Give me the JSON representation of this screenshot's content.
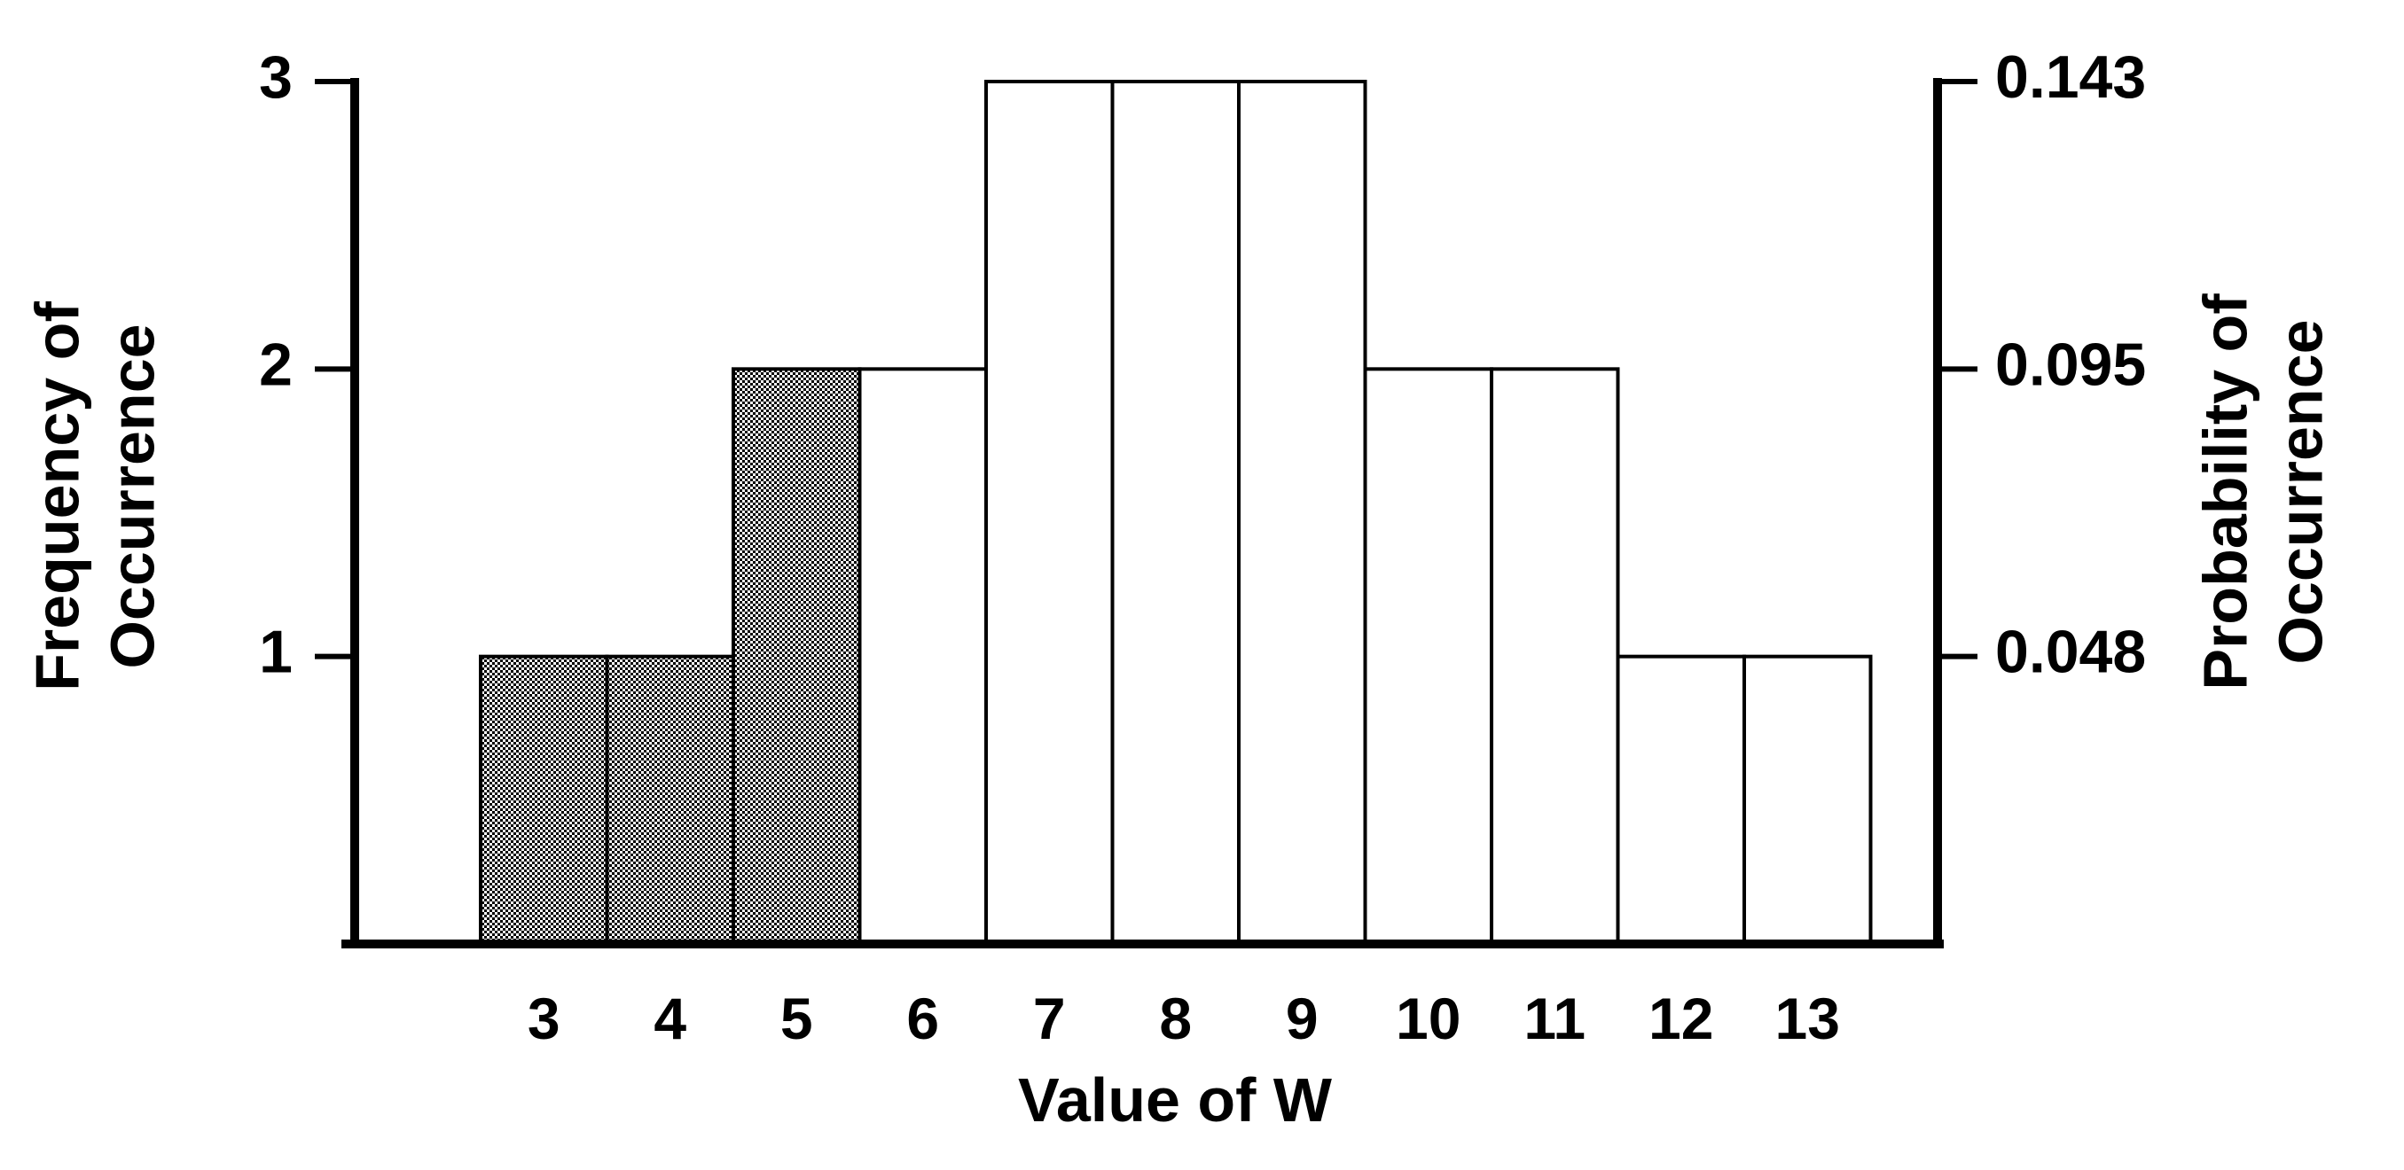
{
  "chart_data": {
    "type": "bar",
    "categories": [
      "3",
      "4",
      "5",
      "6",
      "7",
      "8",
      "9",
      "10",
      "11",
      "12",
      "13"
    ],
    "values": [
      1,
      1,
      2,
      2,
      3,
      3,
      3,
      2,
      2,
      1,
      1
    ],
    "highlighted_categories": [
      "3",
      "4",
      "5"
    ],
    "highlight_style": "checkered",
    "xlabel": "Value of W",
    "ylabel_line1": "Frequency of",
    "ylabel_line2": "Occurrence",
    "y2label_line1": "Probability of",
    "y2label_line2": "Occurrence",
    "ylim": [
      0,
      3
    ],
    "y_ticks": [
      1,
      2,
      3
    ],
    "y2_ticks": [
      "0.048",
      "0.095",
      "0.143"
    ],
    "grid": false,
    "legend": "none"
  }
}
